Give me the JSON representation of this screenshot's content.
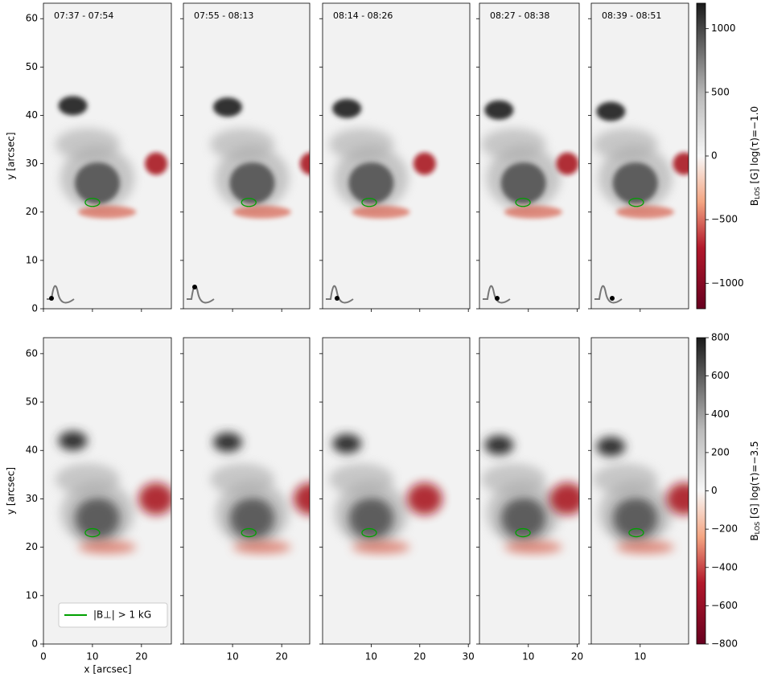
{
  "chart_data": {
    "type": "image-grid",
    "x_label": "x [arcsec]",
    "y_label": "y [arcsec]",
    "legend": {
      "label": "|B⊥| > 1 kG",
      "color": "#00a000"
    },
    "columns": [
      {
        "xlim": [
          0,
          26.1
        ],
        "xticks": [
          0,
          10,
          20
        ]
      },
      {
        "xlim": [
          0,
          25.7
        ],
        "xticks": [
          10,
          20
        ]
      },
      {
        "xlim": [
          0,
          30.3
        ],
        "xticks": [
          10,
          20,
          30
        ]
      },
      {
        "xlim": [
          0,
          20.4
        ],
        "xticks": [
          10,
          20
        ]
      },
      {
        "xlim": [
          0,
          19.9
        ],
        "xticks": [
          10
        ]
      }
    ],
    "rows": [
      {
        "titles": [
          "07:37 - 07:54",
          "07:55 - 08:13",
          "08:14 - 08:26",
          "08:27 - 08:38",
          "08:39 - 08:51"
        ],
        "ylim": [
          0,
          63.2
        ],
        "yticks": [
          0,
          10,
          20,
          30,
          40,
          50,
          60
        ],
        "colorbar": {
          "lim": [
            -1200,
            1200
          ],
          "ticks": [
            {
              "value": -1000,
              "label": "−1000"
            },
            {
              "value": -500,
              "label": "−500"
            },
            0,
            500,
            1000
          ],
          "label_symbol": "B",
          "label_subscript": "LOS",
          "label_text": " [G] log(τ)=−1.0"
        }
      },
      {
        "ylim": [
          0,
          63.3
        ],
        "yticks": [
          0,
          10,
          20,
          30,
          40,
          50,
          60
        ],
        "colorbar": {
          "lim": [
            -800,
            800
          ],
          "ticks": [
            {
              "value": -800,
              "label": "−800"
            },
            {
              "value": -600,
              "label": "−600"
            },
            {
              "value": -400,
              "label": "−400"
            },
            {
              "value": -200,
              "label": "−200"
            },
            0,
            200,
            400,
            600,
            800
          ],
          "label_symbol": "B",
          "label_subscript": "LOS",
          "label_text": " [G] log(τ)=−3.5"
        }
      }
    ]
  }
}
